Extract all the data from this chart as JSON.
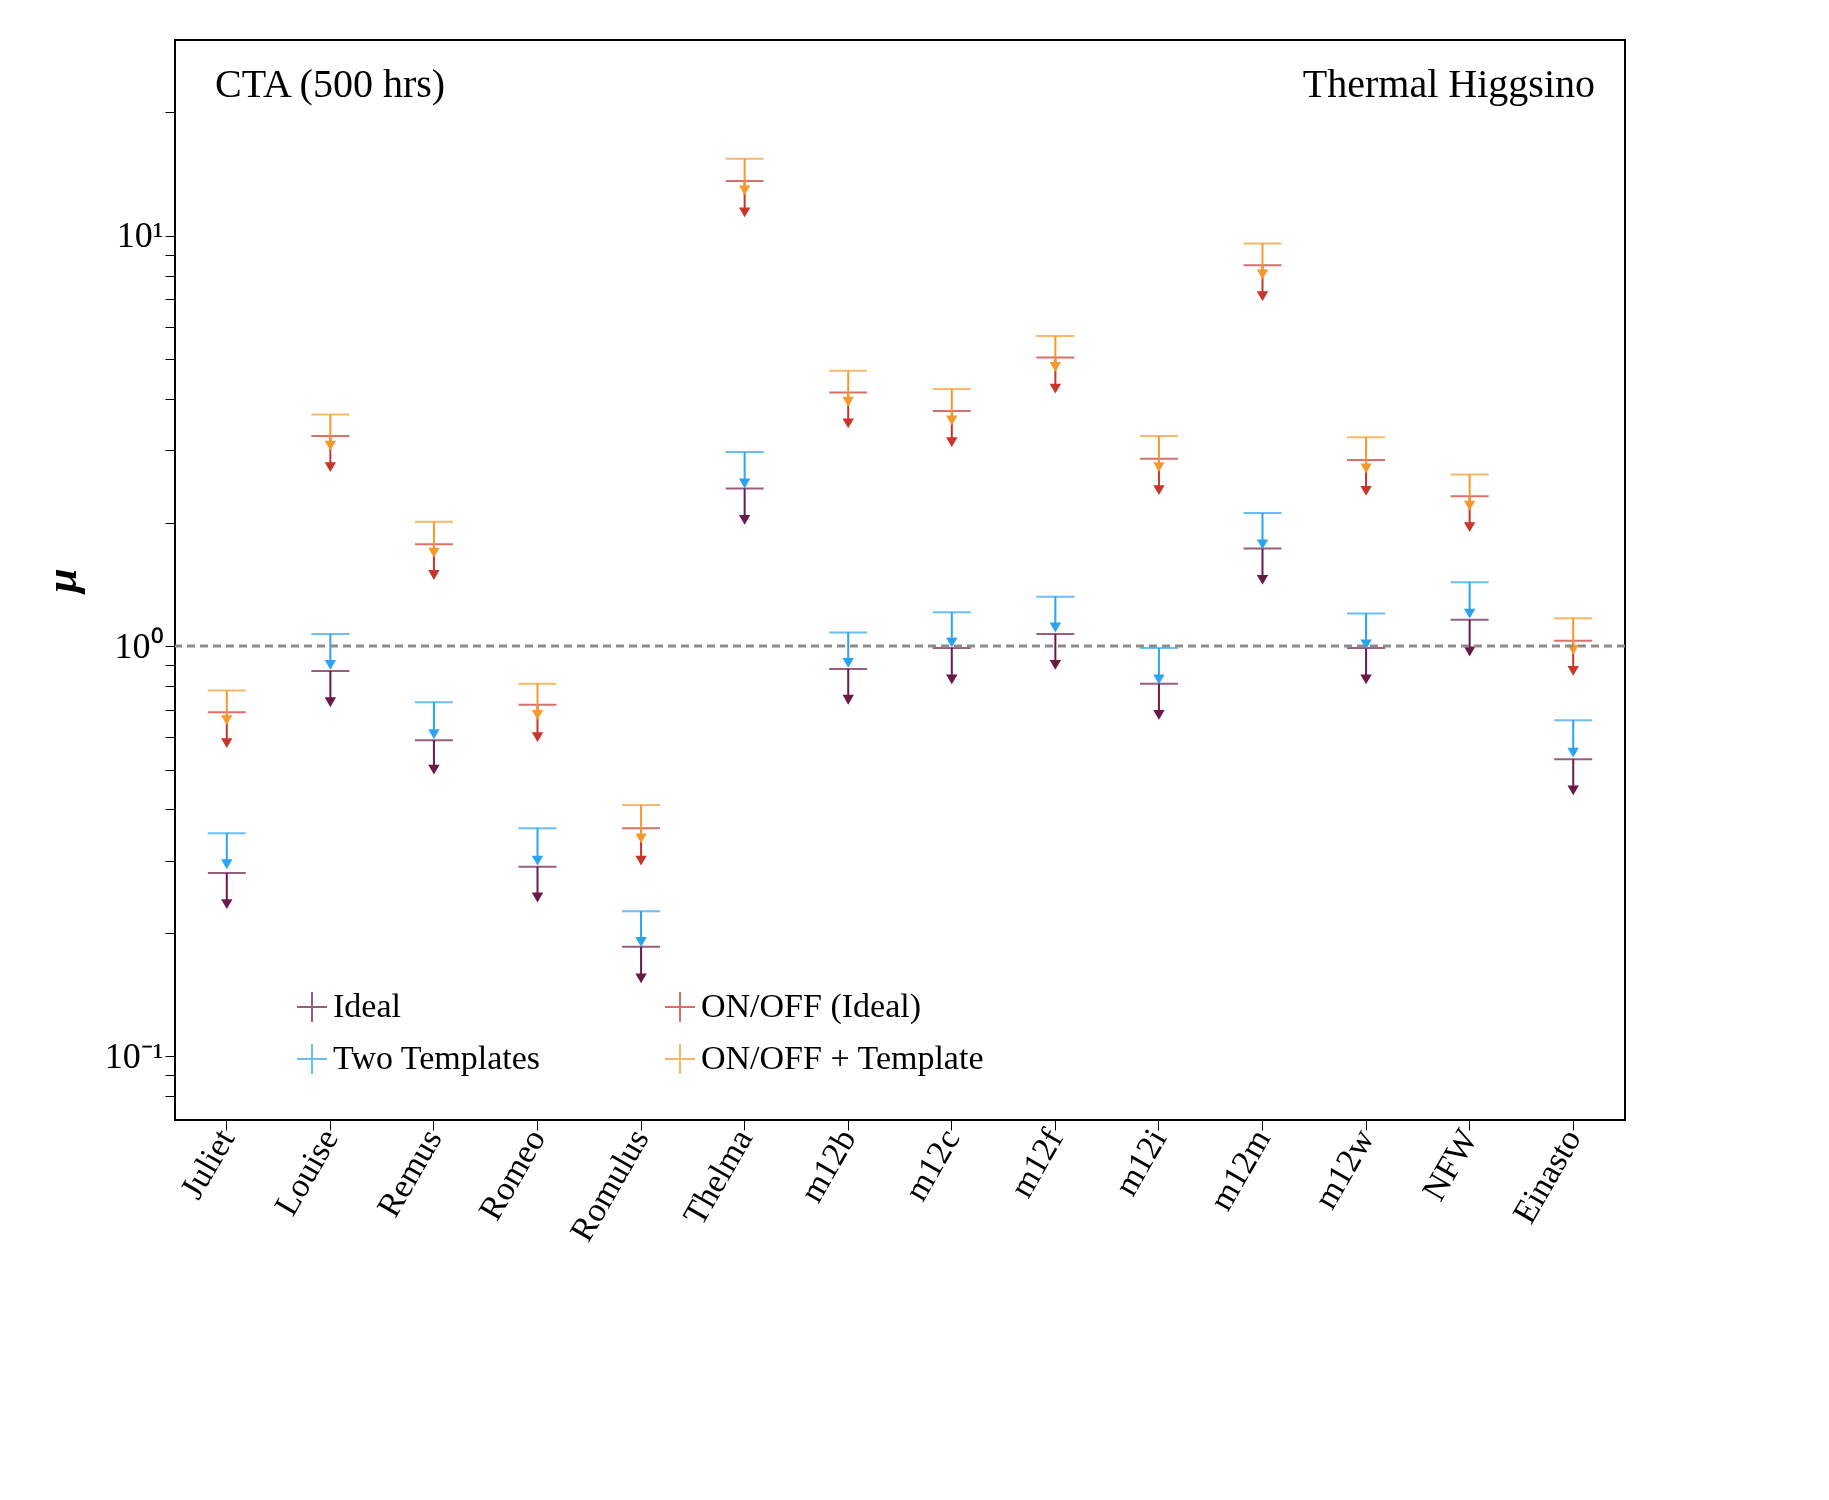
{
  "chart_data": {
    "type": "scatter",
    "marker": "triangle",
    "ylabel": "μ",
    "log": "y",
    "categories": [
      "Juliet",
      "Louise",
      "Remus",
      "Romeo",
      "Romulus",
      "Thelma",
      "m12b",
      "m12c",
      "m12f",
      "m12i",
      "m12m",
      "m12w",
      "NFW",
      "Einasto"
    ],
    "series": [
      {
        "name": "Ideal",
        "color": "#6b1a48",
        "values": [
          0.235,
          0.73,
          0.5,
          0.244,
          0.155,
          2.03,
          0.74,
          0.83,
          0.9,
          0.68,
          1.45,
          0.83,
          0.97,
          0.445
        ],
        "errors": [
          [
            0.235,
            0.28
          ],
          [
            0.73,
            0.87
          ],
          [
            0.5,
            0.59
          ],
          [
            0.244,
            0.29
          ],
          [
            0.155,
            0.185
          ],
          [
            2.03,
            2.42
          ],
          [
            0.74,
            0.88
          ],
          [
            0.83,
            0.99
          ],
          [
            0.9,
            1.07
          ],
          [
            0.68,
            0.81
          ],
          [
            1.45,
            1.73
          ],
          [
            0.83,
            0.99
          ],
          [
            0.97,
            1.16
          ],
          [
            0.445,
            0.53
          ]
        ]
      },
      {
        "name": "Two Templates",
        "color": "#2aa3f0",
        "values": [
          0.294,
          0.9,
          0.61,
          0.3,
          0.19,
          2.49,
          0.91,
          1.02,
          1.11,
          0.83,
          1.77,
          1.01,
          1.2,
          0.55
        ],
        "errors": [
          [
            0.294,
            0.35
          ],
          [
            0.9,
            1.07
          ],
          [
            0.61,
            0.73
          ],
          [
            0.3,
            0.36
          ],
          [
            0.19,
            0.226
          ],
          [
            2.49,
            2.97
          ],
          [
            0.91,
            1.08
          ],
          [
            1.02,
            1.21
          ],
          [
            1.11,
            1.32
          ],
          [
            0.83,
            0.99
          ],
          [
            1.77,
            2.11
          ],
          [
            1.01,
            1.2
          ],
          [
            1.2,
            1.43
          ],
          [
            0.55,
            0.66
          ]
        ]
      },
      {
        "name": "ON/OFF (Ideal)",
        "color": "#c8352a",
        "values": [
          0.58,
          2.73,
          1.49,
          0.6,
          0.3,
          11.4,
          3.49,
          3.14,
          4.24,
          2.4,
          7.12,
          2.39,
          1.95,
          0.87
        ],
        "errors": [
          [
            0.58,
            0.69
          ],
          [
            2.73,
            3.25
          ],
          [
            1.49,
            1.77
          ],
          [
            0.6,
            0.72
          ],
          [
            0.3,
            0.36
          ],
          [
            11.4,
            13.6
          ],
          [
            3.49,
            4.15
          ],
          [
            3.14,
            3.74
          ],
          [
            4.24,
            5.05
          ],
          [
            2.4,
            2.86
          ],
          [
            7.12,
            8.48
          ],
          [
            2.39,
            2.84
          ],
          [
            1.95,
            2.32
          ],
          [
            0.87,
            1.03
          ]
        ]
      },
      {
        "name": "ON/OFF + Template",
        "color": "#f59a2a",
        "values": [
          0.66,
          3.08,
          1.69,
          0.68,
          0.34,
          12.9,
          3.94,
          3.55,
          4.79,
          2.73,
          8.05,
          2.71,
          2.2,
          0.98
        ],
        "errors": [
          [
            0.66,
            0.78
          ],
          [
            3.08,
            3.67
          ],
          [
            1.69,
            2.01
          ],
          [
            0.68,
            0.81
          ],
          [
            0.34,
            0.41
          ],
          [
            12.9,
            15.4
          ],
          [
            3.94,
            4.69
          ],
          [
            3.55,
            4.23
          ],
          [
            4.79,
            5.7
          ],
          [
            2.73,
            3.25
          ],
          [
            8.05,
            9.58
          ],
          [
            2.71,
            3.23
          ],
          [
            2.2,
            2.62
          ],
          [
            0.98,
            1.17
          ]
        ]
      }
    ],
    "ylim": [
      0.07,
      30
    ],
    "yticks": [
      {
        "value": 0.08,
        "label": null
      },
      {
        "value": 0.09,
        "label": null
      },
      {
        "value": 0.1,
        "label": "10⁻¹"
      },
      {
        "value": 0.2,
        "label": null
      },
      {
        "value": 0.3,
        "label": null
      },
      {
        "value": 0.4,
        "label": null
      },
      {
        "value": 0.5,
        "label": null
      },
      {
        "value": 0.6,
        "label": null
      },
      {
        "value": 0.7,
        "label": null
      },
      {
        "value": 0.8,
        "label": null
      },
      {
        "value": 0.9,
        "label": null
      },
      {
        "value": 1,
        "label": "10⁰"
      },
      {
        "value": 2,
        "label": null
      },
      {
        "value": 3,
        "label": null
      },
      {
        "value": 4,
        "label": null
      },
      {
        "value": 5,
        "label": null
      },
      {
        "value": 6,
        "label": null
      },
      {
        "value": 7,
        "label": null
      },
      {
        "value": 8,
        "label": null
      },
      {
        "value": 9,
        "label": null
      },
      {
        "value": 10,
        "label": "10¹"
      },
      {
        "value": 20,
        "label": null
      }
    ],
    "ref_lines": [
      {
        "axis": "y",
        "value": 1,
        "color": "#8c8c8c",
        "line_style": "dashed"
      }
    ],
    "annotations": [
      "CTA (500 hrs)",
      "Thermal Higgsino"
    ],
    "legend": "bottom left",
    "grid": false
  }
}
